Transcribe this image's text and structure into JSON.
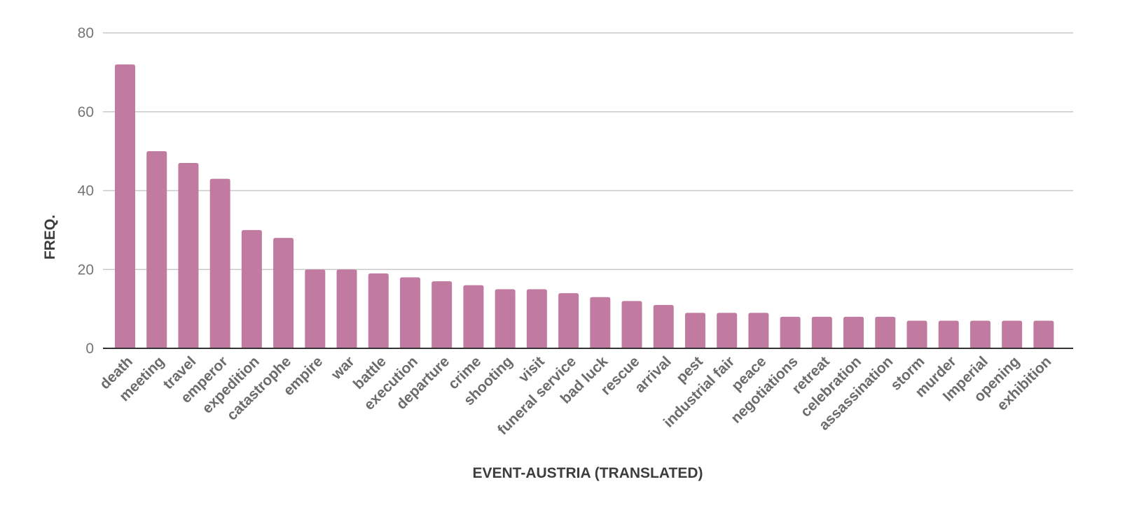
{
  "chart_data": {
    "type": "bar",
    "title": "",
    "xlabel": "EVENT-AUSTRIA (TRANSLATED)",
    "ylabel": "FREQ.",
    "ylim": [
      0,
      80
    ],
    "yticks": [
      0,
      20,
      40,
      60,
      80
    ],
    "grid": true,
    "legend": "none",
    "bar_color": "#c27ba0",
    "categories": [
      "death",
      "meeting",
      "travel",
      "emperor",
      "expedition",
      "catastrophe",
      "empire",
      "war",
      "battle",
      "execution",
      "departure",
      "crime",
      "shooting",
      "visit",
      "funeral service",
      "bad luck",
      "rescue",
      "arrival",
      "pest",
      "industrial fair",
      "peace",
      "negotiations",
      "retreat",
      "celebration",
      "assassination",
      "storm",
      "murder",
      "Imperial",
      "opening",
      "exhibition"
    ],
    "values": [
      72,
      50,
      47,
      43,
      30,
      28,
      20,
      20,
      19,
      18,
      17,
      16,
      15,
      15,
      14,
      13,
      12,
      11,
      9,
      9,
      9,
      8,
      8,
      8,
      8,
      7,
      7,
      7,
      7,
      7
    ]
  }
}
